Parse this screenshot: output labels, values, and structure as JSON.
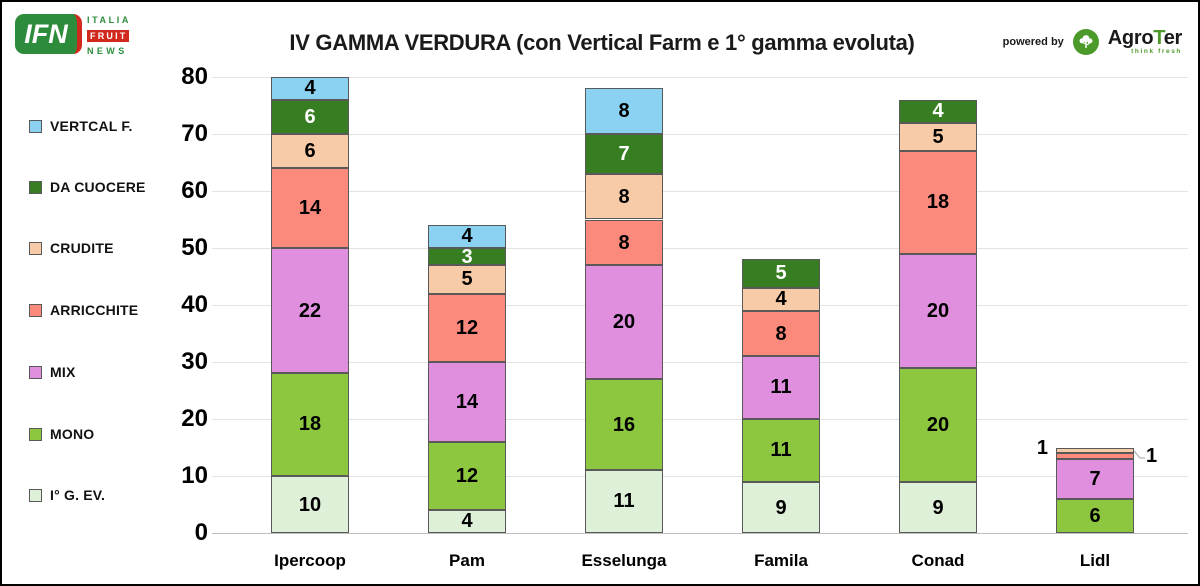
{
  "header": {
    "title": "IV GAMMA VERDURA (con Vertical Farm e 1° gamma evoluta)",
    "ifn_logo": {
      "abbr": "IFN",
      "word1": "ITALIA",
      "word2": "FRUIT",
      "word3": "NEWS"
    },
    "powered_by": {
      "label": "powered by",
      "brand_pre": "Agro",
      "brand_t": "T",
      "brand_post": "er",
      "tagline": "think fresh"
    }
  },
  "colors": {
    "ifn_green": "#2D8C3C",
    "ifn_red": "#D2291E",
    "agroter_green": "#4C9A2A",
    "grid": "#E3E3E3",
    "axis_line": "#BFBFBF",
    "segment_border": "#595959"
  },
  "chart_data": {
    "type": "bar",
    "stacked": true,
    "title": "IV GAMMA VERDURA (con Vertical Farm e 1° gamma evoluta)",
    "categories": [
      "Ipercoop",
      "Pam",
      "Esselunga",
      "Famila",
      "Conad",
      "Lidl"
    ],
    "series_bottom_to_top": [
      {
        "name": "I° G. EV.",
        "color": "#DFF0D8",
        "label_color": "#000000",
        "values": [
          10,
          4,
          11,
          9,
          9,
          0
        ]
      },
      {
        "name": "MONO",
        "color": "#8DC63F",
        "label_color": "#000000",
        "values": [
          18,
          12,
          16,
          11,
          20,
          6
        ]
      },
      {
        "name": "MIX",
        "color": "#E08FDF",
        "label_color": "#000000",
        "values": [
          22,
          14,
          20,
          11,
          20,
          7
        ]
      },
      {
        "name": "ARRICCHITE",
        "color": "#FB8A7D",
        "label_color": "#000000",
        "values": [
          14,
          12,
          8,
          8,
          18,
          1
        ]
      },
      {
        "name": "CRUDITE",
        "color": "#F8CBA8",
        "label_color": "#000000",
        "values": [
          6,
          5,
          8,
          4,
          5,
          1
        ]
      },
      {
        "name": "DA CUOCERE",
        "color": "#377D22",
        "label_color": "#FFFFFF",
        "values": [
          6,
          3,
          7,
          5,
          4,
          0
        ]
      },
      {
        "name": "VERTCAL F.",
        "color": "#8BD2F2",
        "label_color": "#000000",
        "values": [
          4,
          4,
          8,
          0,
          0,
          0
        ]
      }
    ],
    "totals": [
      80,
      54,
      78,
      48,
      76,
      15
    ],
    "ylim": [
      0,
      80
    ],
    "yticks": [
      0,
      10,
      20,
      30,
      40,
      50,
      60,
      70,
      80
    ],
    "grid": true,
    "legend_position": "left",
    "legend_top_to_bottom": [
      "VERTCAL F.",
      "DA CUOCERE",
      "CRUDITE",
      "ARRICCHITE",
      "MIX",
      "MONO",
      "I° G. EV."
    ],
    "outside_labels": [
      {
        "category": "Lidl",
        "series": "CRUDITE",
        "value": 1,
        "side": "left"
      },
      {
        "category": "Lidl",
        "series": "ARRICCHITE",
        "value": 1,
        "side": "right"
      }
    ]
  }
}
